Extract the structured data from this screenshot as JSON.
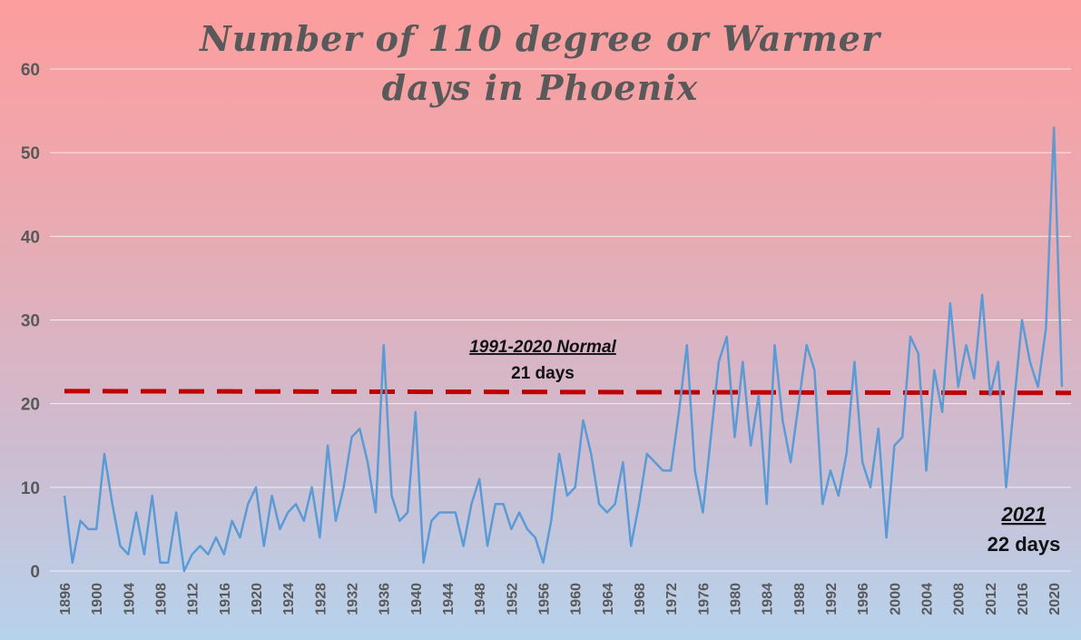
{
  "chart_data": {
    "type": "line",
    "title_line1": "Number of 110 degree or Warmer",
    "title_line2": "days in Phoenix",
    "xlabel": "",
    "ylabel": "",
    "ylim": [
      0,
      60
    ],
    "yticks": [
      0,
      10,
      20,
      30,
      40,
      50,
      60
    ],
    "xlim": [
      1896,
      2021
    ],
    "xtick_labels": [
      "1896",
      "1900",
      "1904",
      "1908",
      "1912",
      "1916",
      "1920",
      "1924",
      "1928",
      "1932",
      "1936",
      "1940",
      "1944",
      "1948",
      "1952",
      "1956",
      "1960",
      "1964",
      "1968",
      "1972",
      "1976",
      "1980",
      "1984",
      "1988",
      "1992",
      "1996",
      "2000",
      "2004",
      "2008",
      "2012",
      "2016",
      "2020"
    ],
    "grid": true,
    "legend": "none",
    "x": [
      1896,
      1897,
      1898,
      1899,
      1900,
      1901,
      1902,
      1903,
      1904,
      1905,
      1906,
      1907,
      1908,
      1909,
      1910,
      1911,
      1912,
      1913,
      1914,
      1915,
      1916,
      1917,
      1918,
      1919,
      1920,
      1921,
      1922,
      1923,
      1924,
      1925,
      1926,
      1927,
      1928,
      1929,
      1930,
      1931,
      1932,
      1933,
      1934,
      1935,
      1936,
      1937,
      1938,
      1939,
      1940,
      1941,
      1942,
      1943,
      1944,
      1945,
      1946,
      1947,
      1948,
      1949,
      1950,
      1951,
      1952,
      1953,
      1954,
      1955,
      1956,
      1957,
      1958,
      1959,
      1960,
      1961,
      1962,
      1963,
      1964,
      1965,
      1966,
      1967,
      1968,
      1969,
      1970,
      1971,
      1972,
      1973,
      1974,
      1975,
      1976,
      1977,
      1978,
      1979,
      1980,
      1981,
      1982,
      1983,
      1984,
      1985,
      1986,
      1987,
      1988,
      1989,
      1990,
      1991,
      1992,
      1993,
      1994,
      1995,
      1996,
      1997,
      1998,
      1999,
      2000,
      2001,
      2002,
      2003,
      2004,
      2005,
      2006,
      2007,
      2008,
      2009,
      2010,
      2011,
      2012,
      2013,
      2014,
      2015,
      2016,
      2017,
      2018,
      2019,
      2020,
      2021
    ],
    "series": [
      {
        "values": [
          9,
          1,
          6,
          5,
          5,
          14,
          8,
          3,
          2,
          7,
          2,
          9,
          1,
          1,
          7,
          0,
          2,
          3,
          2,
          4,
          2,
          6,
          4,
          8,
          10,
          3,
          9,
          5,
          7,
          8,
          6,
          10,
          4,
          15,
          6,
          10,
          16,
          17,
          13,
          7,
          27,
          9,
          6,
          7,
          19,
          1,
          6,
          7,
          7,
          7,
          3,
          8,
          11,
          3,
          8,
          8,
          5,
          7,
          5,
          4,
          1,
          6,
          14,
          9,
          10,
          18,
          14,
          8,
          7,
          8,
          13,
          3,
          8,
          14,
          13,
          12,
          12,
          19,
          27,
          12,
          7,
          16,
          25,
          28,
          16,
          25,
          15,
          21,
          8,
          27,
          18,
          13,
          20,
          27,
          24,
          8,
          12,
          9,
          14,
          25,
          13,
          10,
          17,
          4,
          15,
          16,
          28,
          26,
          12,
          24,
          19,
          32,
          22,
          27,
          23,
          33,
          21,
          25,
          10,
          20,
          30,
          25,
          22,
          29,
          53,
          22
        ],
        "color": "#5b9bd5"
      }
    ],
    "normal_line": {
      "value": 21.5,
      "color": "#c00000"
    },
    "annotations": [
      {
        "title": "1991-2020 Normal",
        "sub": "21 days"
      },
      {
        "title": "2021",
        "sub": "22 days"
      }
    ]
  }
}
